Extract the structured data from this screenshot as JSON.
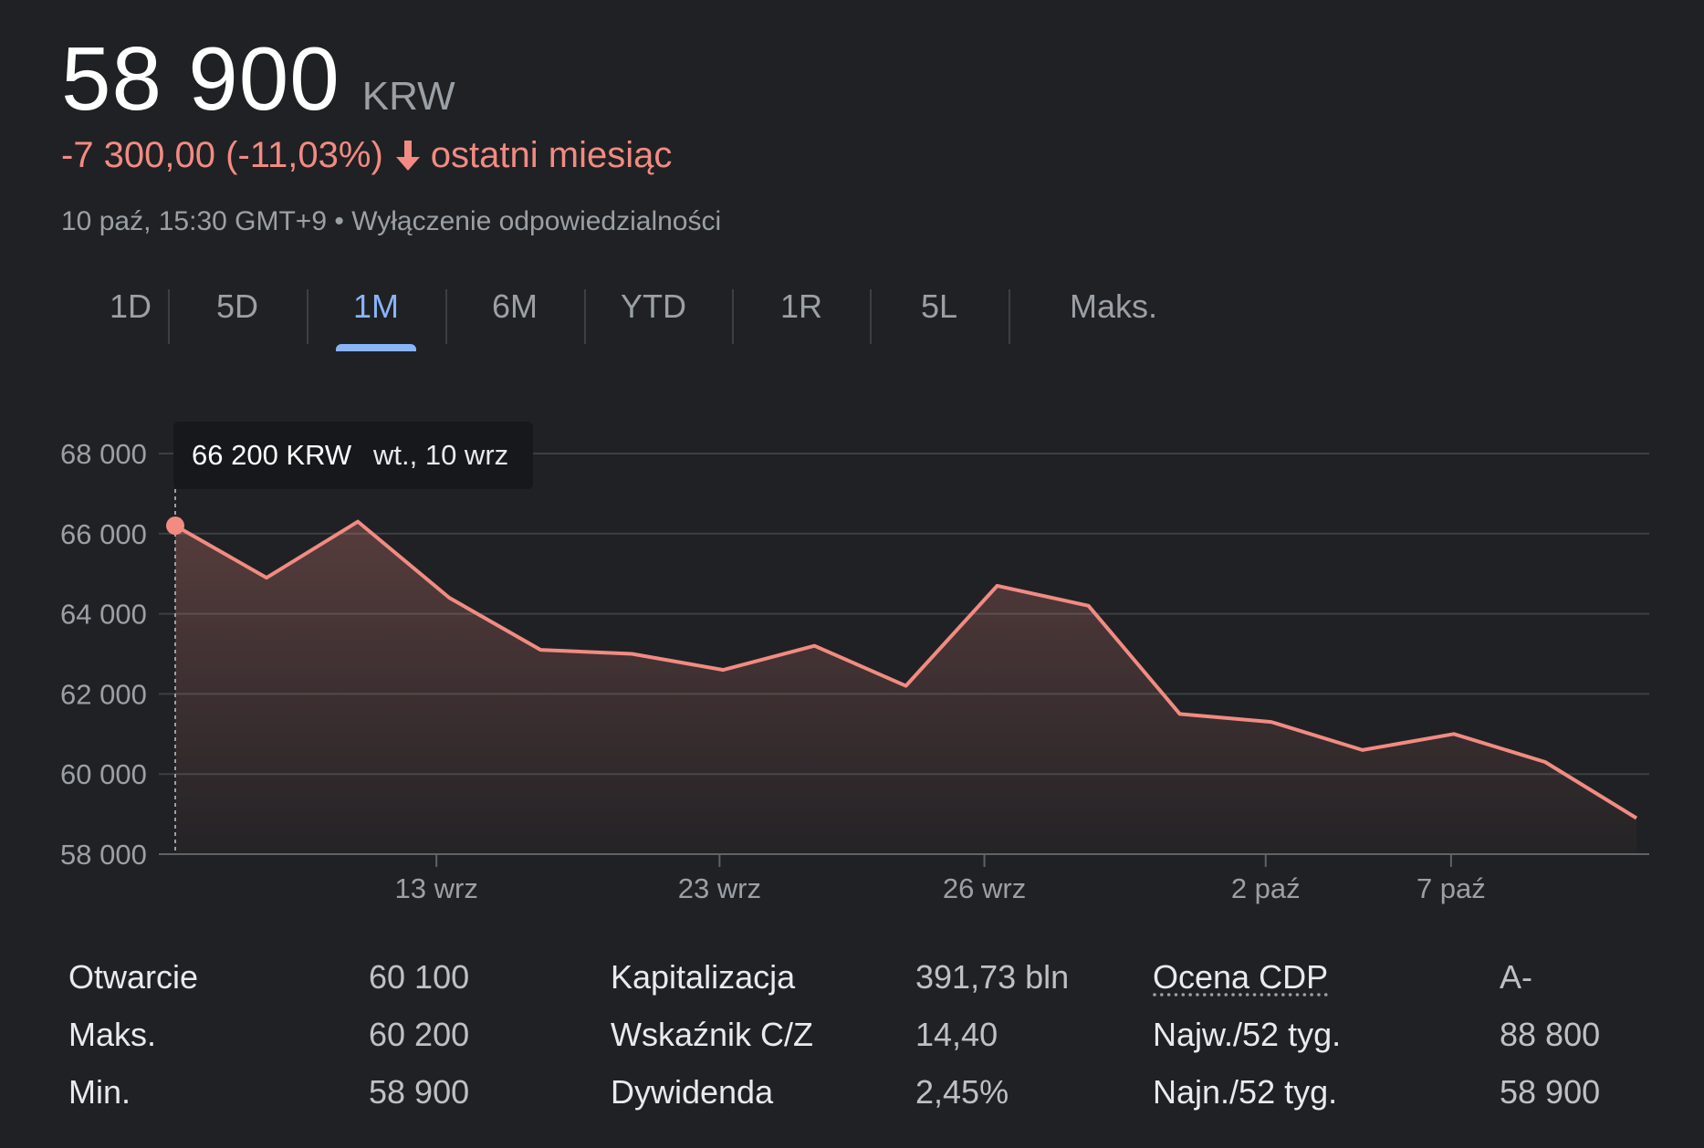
{
  "quote": {
    "price": "58 900",
    "currency": "KRW",
    "change_text": "-7 300,00 (-11,03%)",
    "period": "ostatni miesiąc",
    "timestamp": "10 paź, 15:30 GMT+9",
    "separator": "•",
    "disclaimer": "Wyłączenie odpowiedzialności"
  },
  "tabs": [
    {
      "label": "1D"
    },
    {
      "label": "5D"
    },
    {
      "label": "1M",
      "active": true
    },
    {
      "label": "6M"
    },
    {
      "label": "YTD"
    },
    {
      "label": "1R"
    },
    {
      "label": "5L"
    },
    {
      "label": "Maks."
    }
  ],
  "tooltip": {
    "price": "66 200 KRW",
    "date": "wt., 10 wrz"
  },
  "colors": {
    "background": "#202124",
    "negative": "#f28b82",
    "active_tab": "#8ab4f8",
    "gridline": "#3c4043"
  },
  "chart_data": {
    "type": "area",
    "ylim": [
      58000,
      68000
    ],
    "yticks": [
      "68 000",
      "66 000",
      "64 000",
      "62 000",
      "60 000",
      "58 000"
    ],
    "ytick_values": [
      68000,
      66000,
      64000,
      62000,
      60000,
      58000
    ],
    "xticks": [
      "13 wrz",
      "23 wrz",
      "26 wrz",
      "2 paź",
      "7 paź"
    ],
    "xtick_index": [
      2.86,
      5.96,
      8.86,
      11.94,
      13.97
    ],
    "grid": true,
    "series": [
      {
        "values": [
          66200,
          64900,
          66300,
          64400,
          63100,
          63000,
          62600,
          63200,
          62200,
          64700,
          64200,
          61500,
          61300,
          60600,
          61000,
          60300,
          58900
        ]
      }
    ],
    "highlight_index": 0
  },
  "stats": [
    {
      "label": "Otwarcie",
      "value": "60 100"
    },
    {
      "label": "Maks.",
      "value": "60 200"
    },
    {
      "label": "Min.",
      "value": "58 900"
    },
    {
      "label": "Kapitalizacja",
      "value": "391,73 bln"
    },
    {
      "label": "Wskaźnik C/Z",
      "value": "14,40"
    },
    {
      "label": "Dywidenda",
      "value": "2,45%"
    },
    {
      "label": "Ocena CDP",
      "value": "A-"
    },
    {
      "label": "Najw./52 tyg.",
      "value": "88 800"
    },
    {
      "label": "Najn./52 tyg.",
      "value": "58 900"
    }
  ]
}
